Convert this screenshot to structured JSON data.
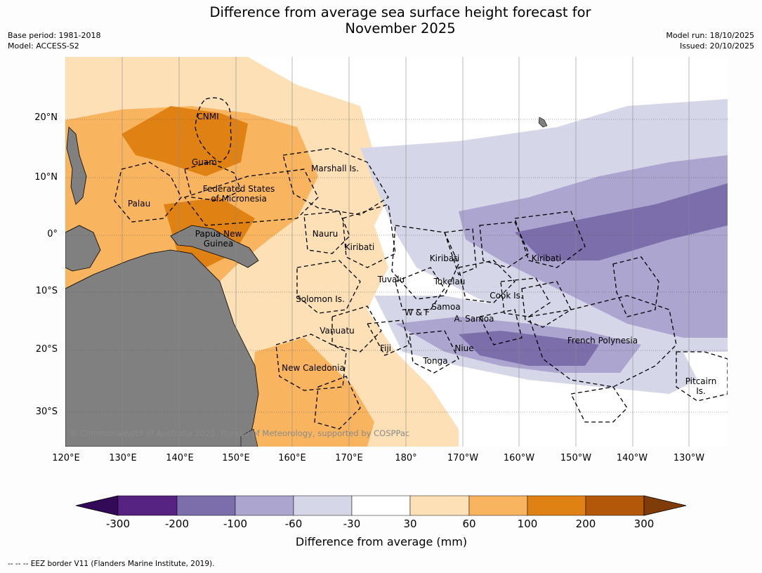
{
  "title_line1": "Difference from average sea surface height forecast for",
  "title_line2": "November 2025",
  "base_period": "Base period: 1981-2018",
  "model": "Model: ACCESS-S2",
  "model_run": "Model run: 18/10/2025",
  "issued": "Issued: 20/10/2025",
  "lat_labels": [
    "20°N",
    "10°N",
    "0°",
    "10°S",
    "20°S",
    "30°S"
  ],
  "lon_labels": [
    "120°E",
    "130°E",
    "140°E",
    "150°E",
    "160°E",
    "170°E",
    "180°",
    "170°W",
    "160°W",
    "150°W",
    "140°W",
    "130°W"
  ],
  "regions": {
    "cnmi": "CNMI",
    "guam": "Guam",
    "marshall": "Marshall Is.",
    "fsm1": "Federated States",
    "fsm2": "of Micronesia",
    "palau": "Palau",
    "nauru": "Nauru",
    "png1": "Papua New",
    "png2": "Guinea",
    "kiribati_west": "Kiribati",
    "kiribati_central": "Kiribati",
    "kiribati_east": "Kiribati",
    "tuvalu": "Tuvalu",
    "tokelau": "Tokelau",
    "cook": "Cook Is.",
    "solomon": "Solomon Is.",
    "wf": "W & F",
    "samoa": "Samoa",
    "asamoa": "A. Samoa",
    "vanuatu": "Vanuatu",
    "fiji": "Fiji",
    "niue": "Niue",
    "tonga": "Tonga",
    "frpoly": "French Polynesia",
    "newcal": "New Caledonia",
    "pitcairn1": "Pitcairn",
    "pitcairn2": "Is."
  },
  "copyright": "© Commonwealth of Australia 2025, Bureau of Meteorology, supported by COSPPac",
  "colorbar": {
    "ticks": [
      "-300",
      "-200",
      "-100",
      "-60",
      "-30",
      "30",
      "60",
      "100",
      "200",
      "300"
    ],
    "colors": [
      "#330a57",
      "#572383",
      "#7b6eab",
      "#aba5cf",
      "#d5d6e8",
      "#ffffff",
      "#fde0b6",
      "#f8b45f",
      "#e08213",
      "#b35808",
      "#7f3b08"
    ],
    "title": "Difference from average (mm)"
  },
  "eez_note": "--  --  -- EEZ border V11 (Flanders Marine Institute, 2019)."
}
